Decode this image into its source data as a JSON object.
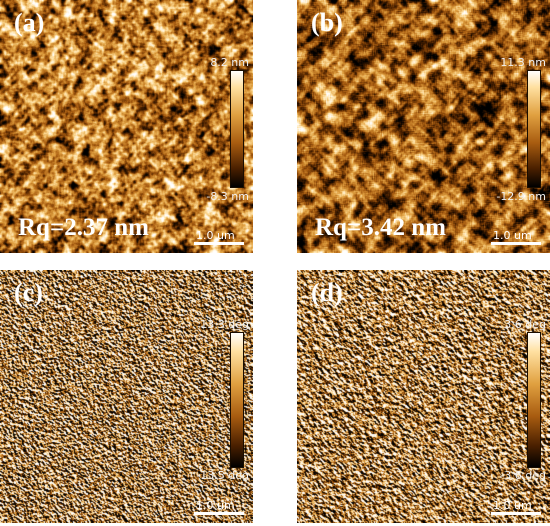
{
  "panels": [
    {
      "label": "(a)",
      "rq": "Rq=2.37 nm",
      "cb_max": "8.2 nm",
      "cb_min": "-8.3 nm",
      "scalebar": "1.0 um",
      "kind": "height"
    },
    {
      "label": "(b)",
      "rq": "Rq=3.42 nm",
      "cb_max": "11.3 nm",
      "cb_min": "-12.9 nm",
      "scalebar": "1.0 um",
      "kind": "height"
    },
    {
      "label": "(c)",
      "cb_max": "13.3 deg",
      "cb_min": "-13.5 deg",
      "scalebar": "1.0 um",
      "kind": "phase"
    },
    {
      "label": "(d)",
      "cb_max": "3.6 deg",
      "cb_min": "-3.6 deg",
      "scalebar": "1.0 um",
      "kind": "phase"
    }
  ],
  "colors": {
    "colormap": [
      "#000000",
      "#4a2000",
      "#a85c10",
      "#e0a040",
      "#ffe0a0",
      "#ffffff"
    ],
    "background": "#ffffff",
    "annotation": "#ffffff"
  }
}
